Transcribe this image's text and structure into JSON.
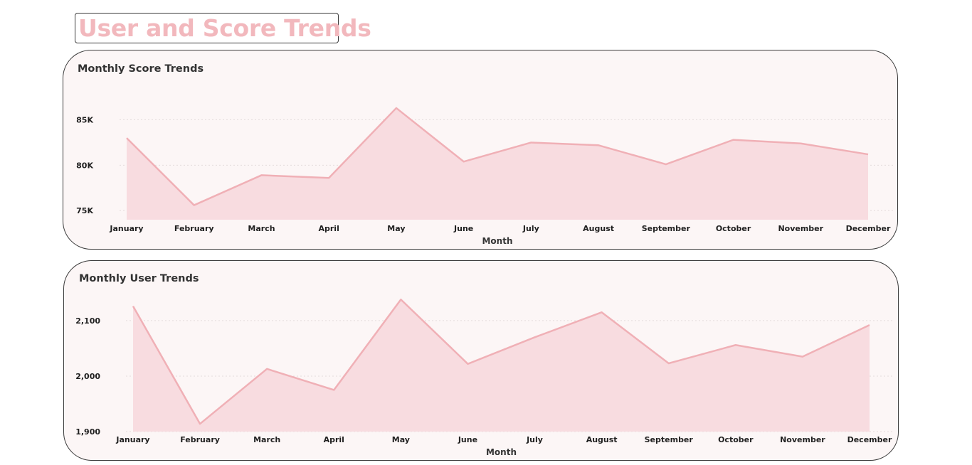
{
  "page": {
    "title": "User and Score Trends",
    "accent_color": "#f2b8bd",
    "fill_color": "#f8dce0",
    "line_color": "#f0b0b6",
    "card_background": "#fcf6f6"
  },
  "chart_data": [
    {
      "type": "area",
      "title": "Monthly Score Trends",
      "xlabel": "Month",
      "ylabel": "",
      "categories": [
        "January",
        "February",
        "March",
        "April",
        "May",
        "June",
        "July",
        "August",
        "September",
        "October",
        "November",
        "December"
      ],
      "values": [
        83000,
        75600,
        78900,
        78600,
        86300,
        80400,
        82500,
        82200,
        80100,
        82800,
        82400,
        81200
      ],
      "y_ticks": [
        75000,
        80000,
        85000
      ],
      "y_tick_labels": [
        "75K",
        "80K",
        "85K"
      ],
      "ylim": [
        74000,
        87000
      ],
      "grid": true
    },
    {
      "type": "area",
      "title": "Monthly User Trends",
      "xlabel": "Month",
      "ylabel": "",
      "categories": [
        "January",
        "February",
        "March",
        "April",
        "May",
        "June",
        "July",
        "August",
        "September",
        "October",
        "November",
        "December"
      ],
      "values": [
        2126,
        1914,
        2013,
        1975,
        2138,
        2022,
        2070,
        2115,
        2023,
        2056,
        2035,
        2092
      ],
      "y_ticks": [
        1900,
        2000,
        2100
      ],
      "y_tick_labels": [
        "1,900",
        "2,000",
        "2,100"
      ],
      "ylim": [
        1900,
        2155
      ],
      "grid": true
    }
  ]
}
